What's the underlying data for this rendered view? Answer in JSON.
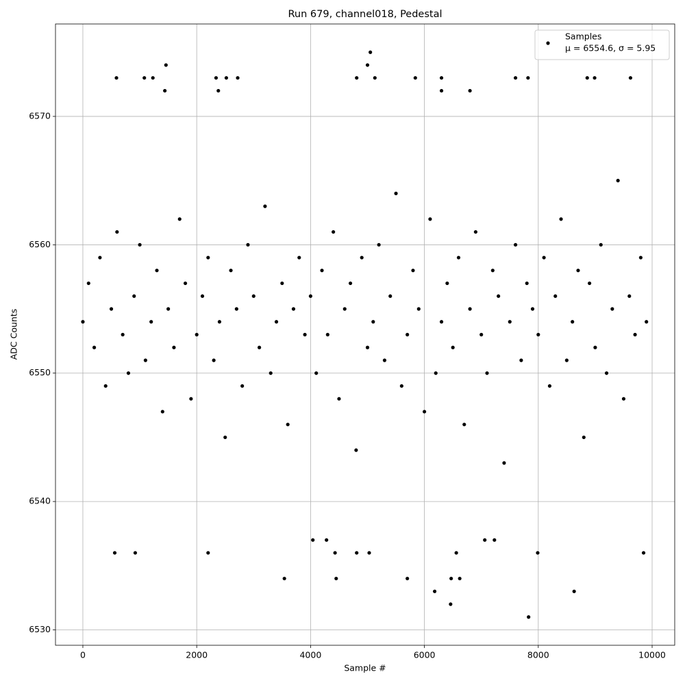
{
  "chart_data": {
    "type": "scatter",
    "title": "Run 679, channel018, Pedestal",
    "x_label": "Sample #",
    "y_label": "ADC Counts",
    "xlim": [
      -481,
      10397
    ],
    "ylim": [
      6528.8,
      6577.2
    ],
    "xticks": [
      0,
      2000,
      4000,
      6000,
      8000,
      10000
    ],
    "yticks": [
      6530,
      6540,
      6550,
      6560,
      6570
    ],
    "grid": true,
    "legend": "upper right",
    "legend_detail": "μ = 6554.6, σ = 5.95",
    "series": [
      {
        "name": "Samples",
        "color": "#000000",
        "x": [
          0,
          100,
          200,
          300,
          400,
          500,
          600,
          700,
          800,
          900,
          1000,
          1100,
          1200,
          1300,
          1400,
          1500,
          1600,
          1700,
          1800,
          1900,
          2000,
          2100,
          2200,
          2300,
          2400,
          2500,
          2600,
          2700,
          2800,
          2900,
          3000,
          3100,
          3200,
          3300,
          3400,
          3500,
          3600,
          3700,
          3800,
          3900,
          4000,
          4100,
          4200,
          4300,
          4400,
          4500,
          4600,
          4700,
          4800,
          4900,
          5000,
          5100,
          5200,
          5300,
          5400,
          5500,
          5600,
          5700,
          5800,
          5900,
          6000,
          6100,
          6200,
          6300,
          6400,
          6500,
          6600,
          6700,
          6800,
          6900,
          7000,
          7100,
          7200,
          7300,
          7400,
          7500,
          7600,
          7700,
          7800,
          7900,
          8000,
          8100,
          8200,
          8300,
          8400,
          8500,
          8600,
          8700,
          8800,
          8900,
          9000,
          9100,
          9200,
          9300,
          9400,
          9500,
          9600,
          9700,
          9800,
          9900,
          1460,
          5050,
          5000,
          7830,
          6460,
          6180,
          8630,
          3540,
          4450,
          5700,
          6470,
          6620,
          560,
          920,
          2200,
          4430,
          4810,
          5030,
          6560,
          7990,
          9850,
          7230,
          7060,
          4040,
          4280,
          1230,
          1080,
          590,
          2340,
          2520,
          2720,
          4810,
          5130,
          5840,
          6300,
          7600,
          7820,
          8860,
          8990,
          9620,
          1440,
          2380,
          6800,
          6300
        ],
        "values": [
          6554,
          6557,
          6552,
          6559,
          6549,
          6555,
          6561,
          6553,
          6550,
          6556,
          6560,
          6551,
          6554,
          6558,
          6547,
          6555,
          6552,
          6562,
          6557,
          6548,
          6553,
          6556,
          6559,
          6551,
          6554,
          6545,
          6558,
          6555,
          6549,
          6560,
          6556,
          6552,
          6563,
          6550,
          6554,
          6557,
          6546,
          6555,
          6559,
          6553,
          6556,
          6550,
          6558,
          6553,
          6561,
          6548,
          6555,
          6557,
          6544,
          6559,
          6552,
          6554,
          6560,
          6551,
          6556,
          6564,
          6549,
          6553,
          6558,
          6555,
          6547,
          6562,
          6550,
          6554,
          6557,
          6552,
          6559,
          6546,
          6555,
          6561,
          6553,
          6550,
          6558,
          6556,
          6543,
          6554,
          6560,
          6551,
          6557,
          6555,
          6553,
          6559,
          6549,
          6556,
          6562,
          6551,
          6554,
          6558,
          6545,
          6557,
          6552,
          6560,
          6550,
          6555,
          6565,
          6548,
          6556,
          6553,
          6559,
          6554,
          6574,
          6575,
          6574,
          6531,
          6532,
          6533,
          6533,
          6534,
          6534,
          6534,
          6534,
          6534,
          6536,
          6536,
          6536,
          6536,
          6536,
          6536,
          6536,
          6536,
          6536,
          6537,
          6537,
          6537,
          6537,
          6573,
          6573,
          6573,
          6573,
          6573,
          6573,
          6573,
          6573,
          6573,
          6573,
          6573,
          6573,
          6573,
          6573,
          6573,
          6572,
          6572,
          6572,
          6572
        ]
      }
    ]
  }
}
